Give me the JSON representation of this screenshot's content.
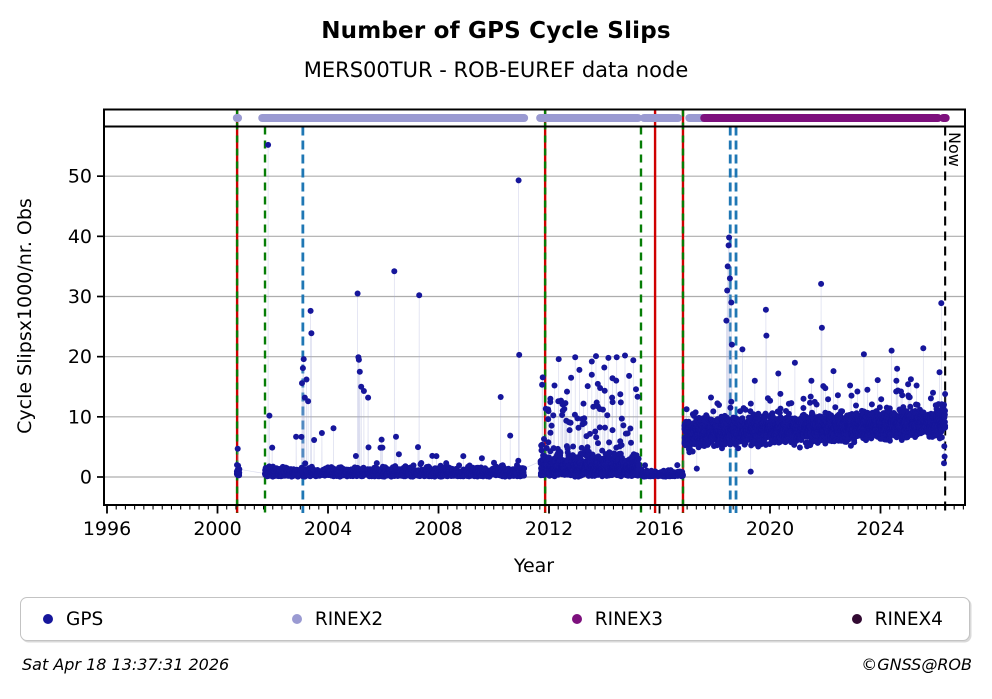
{
  "title": "Number of GPS Cycle Slips",
  "subtitle": "MERS00TUR - ROB-EUREF data node",
  "footer": {
    "timestamp": "Sat Apr 18 13:37:31 2026",
    "credit": "©GNSS@ROB"
  },
  "legend": {
    "items": [
      {
        "label": "GPS",
        "color": "#16169b"
      },
      {
        "label": "RINEX2",
        "color": "#9a9ad2"
      },
      {
        "label": "RINEX3",
        "color": "#7d107d"
      },
      {
        "label": "RINEX4",
        "color": "#320a32"
      }
    ]
  },
  "chart_data": {
    "type": "scatter",
    "title": "Number of GPS Cycle Slips",
    "subtitle": "MERS00TUR - ROB-EUREF data node",
    "xlabel": "Year",
    "ylabel": "Cycle Slipsx1000/nr. Obs",
    "x_ticks": [
      1996,
      2000,
      2004,
      2008,
      2012,
      2016,
      2020,
      2024
    ],
    "y_ticks": [
      0,
      10,
      20,
      30,
      40,
      50
    ],
    "xlim": [
      1995.89,
      2027.06
    ],
    "ylim": [
      -4.6,
      58.3
    ],
    "grid": "horizontal",
    "legend_position": "bottom",
    "now_label": "Now",
    "now_year": 2026.34,
    "colors": {
      "gps_point": "#16169b",
      "rinex2": "#9a9ad2",
      "rinex3": "#7d107d",
      "rinex4": "#320a32",
      "event_green": "#067d06",
      "event_red": "#cf0000",
      "event_blue": "#1f77b4",
      "event_black": "#000000",
      "gridline": "#adadad",
      "connector": "rgba(165,170,215,0.40)"
    },
    "events": [
      {
        "year": 2000.71,
        "style": "red-green"
      },
      {
        "year": 2001.72,
        "style": "green-dashed"
      },
      {
        "year": 2003.09,
        "style": "blue-dashed"
      },
      {
        "year": 2011.86,
        "style": "red-green"
      },
      {
        "year": 2015.33,
        "style": "green-dashed"
      },
      {
        "year": 2015.84,
        "style": "red-solid"
      },
      {
        "year": 2016.85,
        "style": "red-green"
      },
      {
        "year": 2018.56,
        "style": "blue-dashed"
      },
      {
        "year": 2018.77,
        "style": "blue-dashed"
      },
      {
        "year": 2026.34,
        "style": "black-dashed",
        "label": "Now"
      }
    ],
    "rinex2_segments": [
      [
        2000.7,
        2000.745
      ],
      [
        2001.62,
        2011.1
      ],
      [
        2011.68,
        2015.22
      ],
      [
        2015.44,
        2016.67
      ],
      [
        2017.08,
        2017.58
      ]
    ],
    "rinex3_segments": [
      [
        2017.62,
        2026.08
      ],
      [
        2026.27,
        2026.36
      ]
    ],
    "gps": {
      "base_segments": [
        {
          "from": 2000.7,
          "to": 2000.79,
          "step": 0.008,
          "per": 2,
          "kind": "low",
          "base": 0.6,
          "spread": 0.9,
          "burst": 3.5
        },
        {
          "from": 2001.72,
          "to": 2011.1,
          "step": 0.006,
          "per": 1,
          "kind": "low",
          "base": 0.55,
          "spread": 0.75,
          "burst": 6.5
        },
        {
          "from": 2011.7,
          "to": 2015.25,
          "step": 0.006,
          "per": 2,
          "kind": "spiky",
          "base": 1.1,
          "spread": 1.7,
          "burst": 16
        },
        {
          "from": 2015.33,
          "to": 2016.85,
          "step": 0.006,
          "per": 1,
          "kind": "low",
          "base": 0.3,
          "spread": 0.45,
          "burst": 1.6
        },
        {
          "from": 2016.9,
          "to": 2026.34,
          "step": 0.006,
          "per": 2,
          "kind": "band",
          "base": 7.1,
          "spread": 1.4,
          "trend": 1.9,
          "burst": 8
        }
      ],
      "spikes": [
        [
          2000.73,
          4.7
        ],
        [
          2001.83,
          55.2
        ],
        [
          2001.88,
          10.2
        ],
        [
          2003.06,
          15.6
        ],
        [
          2003.09,
          18.1
        ],
        [
          2003.12,
          19.6
        ],
        [
          2003.16,
          13.2
        ],
        [
          2003.22,
          16.2
        ],
        [
          2003.28,
          12.6
        ],
        [
          2003.37,
          27.6
        ],
        [
          2003.4,
          23.9
        ],
        [
          2004.2,
          8.1
        ],
        [
          2005.07,
          30.5
        ],
        [
          2005.1,
          19.9
        ],
        [
          2005.12,
          19.5
        ],
        [
          2005.15,
          17.5
        ],
        [
          2005.2,
          15.0
        ],
        [
          2005.3,
          14.3
        ],
        [
          2005.45,
          13.2
        ],
        [
          2006.4,
          34.2
        ],
        [
          2007.3,
          30.2
        ],
        [
          2010.25,
          13.3
        ],
        [
          2010.9,
          49.3
        ],
        [
          2010.92,
          20.3
        ],
        [
          2012.05,
          13.0
        ],
        [
          2012.2,
          15.2
        ],
        [
          2012.35,
          19.6
        ],
        [
          2012.5,
          11.0
        ],
        [
          2012.65,
          14.2
        ],
        [
          2012.8,
          16.5
        ],
        [
          2012.95,
          19.9
        ],
        [
          2013.1,
          17.8
        ],
        [
          2013.25,
          12.2
        ],
        [
          2013.4,
          15.1
        ],
        [
          2013.55,
          19.2
        ],
        [
          2013.7,
          20.1
        ],
        [
          2013.85,
          14.8
        ],
        [
          2014.0,
          18.2
        ],
        [
          2014.15,
          19.8
        ],
        [
          2014.3,
          16.4
        ],
        [
          2014.45,
          19.9
        ],
        [
          2014.6,
          12.4
        ],
        [
          2014.75,
          20.2
        ],
        [
          2014.9,
          16.8
        ],
        [
          2015.05,
          19.4
        ],
        [
          2015.15,
          14.6
        ],
        [
          2017.35,
          1.4
        ],
        [
          2018.42,
          26.0
        ],
        [
          2018.45,
          31.0
        ],
        [
          2018.47,
          35.0
        ],
        [
          2018.5,
          38.5
        ],
        [
          2018.52,
          39.8
        ],
        [
          2018.55,
          33.0
        ],
        [
          2018.6,
          29.0
        ],
        [
          2018.62,
          22.0
        ],
        [
          2019.0,
          21.2
        ],
        [
          2019.3,
          0.9
        ],
        [
          2019.45,
          16.0
        ],
        [
          2019.85,
          27.8
        ],
        [
          2019.87,
          23.5
        ],
        [
          2020.3,
          17.2
        ],
        [
          2020.9,
          19.0
        ],
        [
          2021.5,
          16.0
        ],
        [
          2021.85,
          32.1
        ],
        [
          2021.88,
          24.8
        ],
        [
          2022.3,
          17.6
        ],
        [
          2022.9,
          15.2
        ],
        [
          2023.4,
          20.4
        ],
        [
          2023.9,
          16.1
        ],
        [
          2024.4,
          21.0
        ],
        [
          2024.6,
          18.0
        ],
        [
          2025.0,
          15.4
        ],
        [
          2025.55,
          21.4
        ],
        [
          2025.9,
          14.0
        ],
        [
          2026.2,
          28.9
        ],
        [
          2026.3,
          2.3
        ],
        [
          2026.31,
          5.1
        ],
        [
          2026.32,
          3.4
        ],
        [
          2026.33,
          8.2
        ],
        [
          2026.34,
          13.8
        ]
      ]
    }
  }
}
